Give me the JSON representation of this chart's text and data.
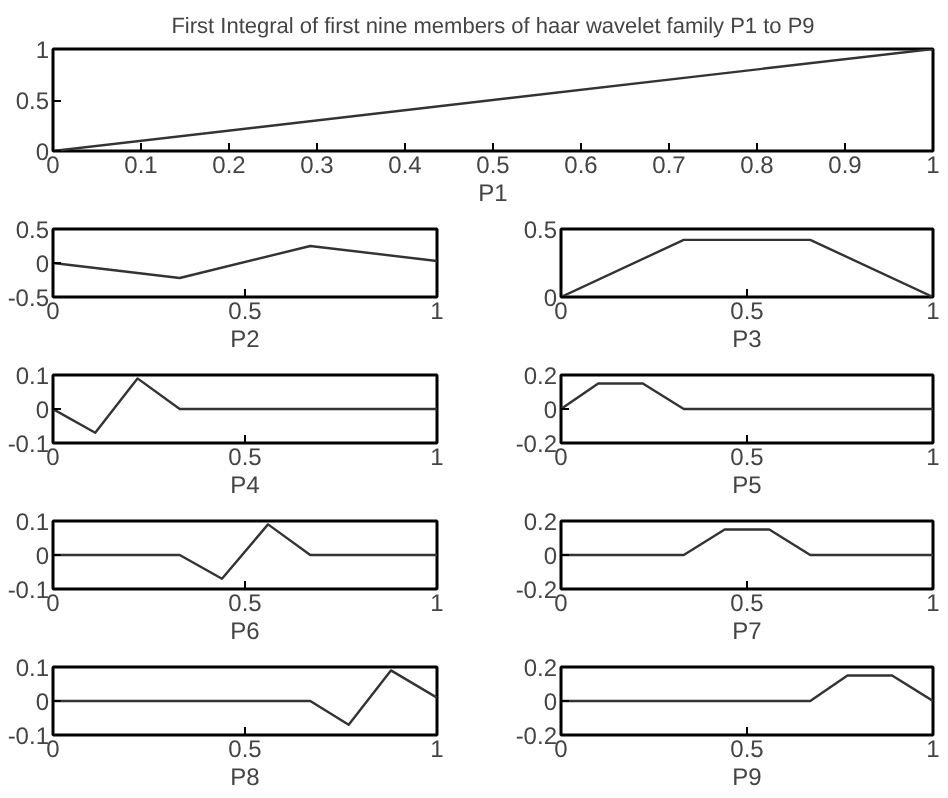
{
  "chart_data": [
    {
      "type": "line",
      "title": "First Integral of first nine members of haar wavelet family P1 to P9",
      "xlabel": "P1",
      "x": [
        0,
        1
      ],
      "values": [
        0,
        1
      ],
      "color": "#333333",
      "xlim": [
        0,
        1
      ],
      "ylim": [
        0,
        1
      ],
      "xticks": [
        0,
        0.1,
        0.2,
        0.3,
        0.4,
        0.5,
        0.6,
        0.7,
        0.8,
        0.9,
        1
      ],
      "yticks": [
        0,
        0.5,
        1
      ],
      "grid": false
    },
    {
      "type": "line",
      "xlabel": "P2",
      "x": [
        0,
        0.33,
        0.67,
        1
      ],
      "values": [
        0,
        -0.22,
        0.25,
        0.03
      ],
      "color": "#333333",
      "xlim": [
        0,
        1
      ],
      "ylim": [
        -0.5,
        0.5
      ],
      "xticks": [
        0,
        0.5,
        1
      ],
      "yticks": [
        -0.5,
        0,
        0.5
      ],
      "grid": false
    },
    {
      "type": "line",
      "xlabel": "P3",
      "x": [
        0,
        0.33,
        0.67,
        1
      ],
      "values": [
        0,
        0.42,
        0.42,
        0
      ],
      "color": "#333333",
      "xlim": [
        0,
        1
      ],
      "ylim": [
        0,
        0.5
      ],
      "xticks": [
        0,
        0.5,
        1
      ],
      "yticks": [
        0,
        0.5
      ],
      "grid": false
    },
    {
      "type": "line",
      "xlabel": "P4",
      "x": [
        0,
        0.11,
        0.22,
        0.33,
        1
      ],
      "values": [
        0,
        -0.07,
        0.09,
        0,
        0
      ],
      "color": "#333333",
      "xlim": [
        0,
        1
      ],
      "ylim": [
        -0.1,
        0.1
      ],
      "xticks": [
        0,
        0.5,
        1
      ],
      "yticks": [
        -0.1,
        0,
        0.1
      ],
      "grid": false
    },
    {
      "type": "line",
      "xlabel": "P5",
      "x": [
        0,
        0.1,
        0.22,
        0.33,
        1
      ],
      "values": [
        0,
        0.15,
        0.15,
        0,
        0
      ],
      "color": "#333333",
      "xlim": [
        0,
        1
      ],
      "ylim": [
        -0.2,
        0.2
      ],
      "xticks": [
        0,
        0.5,
        1
      ],
      "yticks": [
        -0.2,
        0,
        0.2
      ],
      "grid": false
    },
    {
      "type": "line",
      "xlabel": "P6",
      "x": [
        0,
        0.33,
        0.44,
        0.56,
        0.67,
        1
      ],
      "values": [
        0,
        0,
        -0.07,
        0.09,
        0,
        0
      ],
      "color": "#333333",
      "xlim": [
        0,
        1
      ],
      "ylim": [
        -0.1,
        0.1
      ],
      "xticks": [
        0,
        0.5,
        1
      ],
      "yticks": [
        -0.1,
        0,
        0.1
      ],
      "grid": false
    },
    {
      "type": "line",
      "xlabel": "P7",
      "x": [
        0,
        0.33,
        0.44,
        0.56,
        0.67,
        1
      ],
      "values": [
        0,
        0,
        0.15,
        0.15,
        0,
        0
      ],
      "color": "#333333",
      "xlim": [
        0,
        1
      ],
      "ylim": [
        -0.2,
        0.2
      ],
      "xticks": [
        0,
        0.5,
        1
      ],
      "yticks": [
        -0.2,
        0,
        0.2
      ],
      "grid": false
    },
    {
      "type": "line",
      "xlabel": "P8",
      "x": [
        0,
        0.67,
        0.77,
        0.88,
        1
      ],
      "values": [
        0,
        0,
        -0.07,
        0.09,
        0.01
      ],
      "color": "#333333",
      "xlim": [
        0,
        1
      ],
      "ylim": [
        -0.1,
        0.1
      ],
      "xticks": [
        0,
        0.5,
        1
      ],
      "yticks": [
        -0.1,
        0,
        0.1
      ],
      "grid": false
    },
    {
      "type": "line",
      "xlabel": "P9",
      "x": [
        0,
        0.67,
        0.77,
        0.89,
        1
      ],
      "values": [
        0,
        0,
        0.15,
        0.15,
        0
      ],
      "color": "#333333",
      "xlim": [
        0,
        1
      ],
      "ylim": [
        -0.2,
        0.2
      ],
      "xticks": [
        0,
        0.5,
        1
      ],
      "yticks": [
        -0.2,
        0,
        0.2
      ],
      "grid": false
    }
  ]
}
